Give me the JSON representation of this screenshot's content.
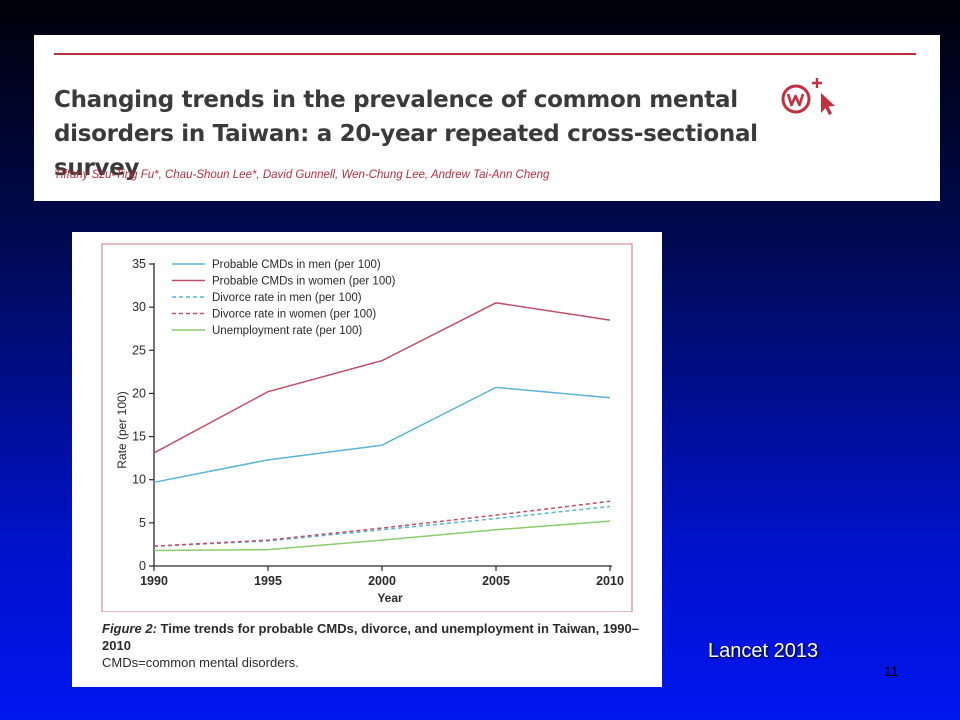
{
  "paper": {
    "title": "Changing trends in the prevalence of common mental disorders in Taiwan: a 20-year repeated cross-sectional survey",
    "authors": "Tiffany Szu-Ting Fu*, Chau-Shoun Lee*, David Gunnell, Wen-Chung Lee, Andrew Tai-Ann Cheng"
  },
  "figure": {
    "caption_label": "Figure 2:",
    "caption_text": " Time trends for probable CMDs, divorce, and unemployment in Taiwan, 1990–2010",
    "caption_note": "CMDs=common mental disorders."
  },
  "source": "Lancet 2013",
  "slide_number": "11",
  "chart_data": {
    "type": "line",
    "x": [
      1990,
      1995,
      2000,
      2005,
      2010
    ],
    "xticks": [
      "1990",
      "1995",
      "2000",
      "2005",
      "2010"
    ],
    "xlabel": "Year",
    "ylabel": "Rate (per 100)",
    "ylim": [
      0,
      35
    ],
    "yticks": [
      "0",
      "5",
      "10",
      "15",
      "20",
      "25",
      "30",
      "35"
    ],
    "legend_position": "top-left",
    "grid": false,
    "series": [
      {
        "name": "Probable CMDs in men (per 100)",
        "color": "#5ab4d6",
        "dash": false,
        "values": [
          9.7,
          12.3,
          14.0,
          20.7,
          19.5
        ]
      },
      {
        "name": "Probable CMDs in women (per 100)",
        "color": "#c0506a",
        "dash": false,
        "values": [
          13.1,
          20.2,
          23.8,
          30.5,
          28.5
        ]
      },
      {
        "name": "Divorce rate in men (per 100)",
        "color": "#5ab4d6",
        "dash": true,
        "values": [
          2.3,
          2.9,
          4.2,
          5.5,
          6.9
        ]
      },
      {
        "name": "Divorce rate in women (per 100)",
        "color": "#c0506a",
        "dash": true,
        "values": [
          2.3,
          3.0,
          4.4,
          5.9,
          7.5
        ]
      },
      {
        "name": "Unemployment rate (per 100)",
        "color": "#8ccc6c",
        "dash": false,
        "values": [
          1.8,
          1.9,
          3.0,
          4.2,
          5.2
        ]
      }
    ]
  }
}
